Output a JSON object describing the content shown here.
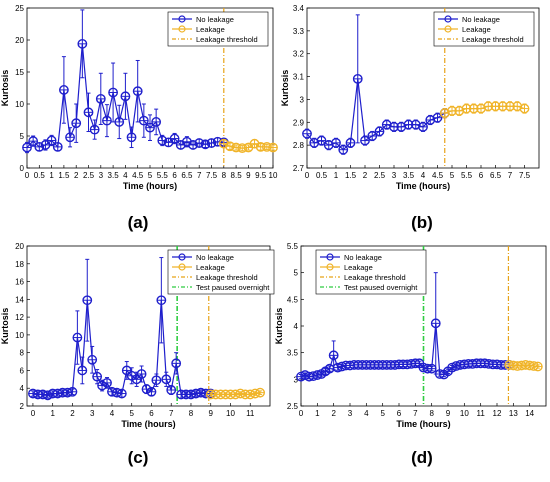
{
  "colors": {
    "no_leakage": "#1f1fcc",
    "leakage": "#f0b429",
    "threshold": "#e8a317",
    "overnight": "#2ecc40",
    "axis": "#000000"
  },
  "chart_data": [
    {
      "panel_label": "(a)",
      "type": "line",
      "xlabel": "Time (hours)",
      "ylabel": "Kurtosis",
      "xlim": [
        0,
        10
      ],
      "ylim": [
        0,
        25
      ],
      "xticks": [
        0,
        0.5,
        1,
        1.5,
        2,
        2.5,
        3,
        3.5,
        4,
        4.5,
        5,
        5.5,
        6,
        6.5,
        7,
        7.5,
        8,
        8.5,
        9,
        9.5,
        10
      ],
      "xtick_labels": [
        "0",
        "0.5",
        "1",
        "1.5",
        "2",
        "2.5",
        "3",
        "3.5",
        "4",
        "4.5",
        "5",
        "5.5",
        "6",
        "6.5",
        "7",
        "7.5",
        "8",
        "8.5",
        "9",
        "9.5",
        "10"
      ],
      "yticks": [
        0,
        5,
        10,
        15,
        20,
        25
      ],
      "ytick_labels": [
        "0",
        "5",
        "10",
        "15",
        "20",
        "25"
      ],
      "legend": [
        "No leakage",
        "Leakage",
        "Leakage threshold"
      ],
      "legend_position": "top-right",
      "grid": false,
      "threshold": 8,
      "series": [
        {
          "name": "No leakage",
          "x": [
            0,
            0.25,
            0.5,
            0.75,
            1,
            1.25,
            1.5,
            1.75,
            2,
            2.25,
            2.5,
            2.75,
            3,
            3.25,
            3.5,
            3.75,
            4,
            4.25,
            4.5,
            4.75,
            5,
            5.25,
            5.5,
            5.75,
            6,
            6.25,
            6.5,
            6.75,
            7,
            7.25,
            7.5,
            7.75,
            8
          ],
          "y": [
            3.2,
            4.2,
            3.3,
            3.6,
            4.3,
            3.3,
            12.2,
            4.8,
            7.0,
            19.4,
            8.7,
            6.0,
            10.8,
            7.4,
            11.8,
            7.2,
            11.2,
            4.8,
            12.0,
            7.4,
            6.3,
            7.2,
            4.3,
            4.0,
            4.6,
            3.6,
            4.1,
            3.6,
            3.9,
            3.7,
            3.9,
            4.1,
            4.0
          ],
          "err": [
            0.8,
            0.8,
            0.6,
            0.8,
            0.8,
            0.6,
            5.2,
            1.5,
            3.0,
            5.3,
            3.0,
            1.5,
            4.0,
            2.5,
            4.6,
            2.6,
            3.6,
            1.6,
            4.8,
            2.6,
            2.0,
            2.0,
            0.8,
            0.6,
            0.8,
            0.6,
            0.8,
            0.6,
            0.6,
            0.5,
            0.6,
            0.6,
            0.5
          ]
        },
        {
          "name": "Leakage",
          "x": [
            8,
            8.25,
            8.5,
            8.75,
            9,
            9.25,
            9.5,
            9.75,
            10
          ],
          "y": [
            3.8,
            3.4,
            3.2,
            3.1,
            3.2,
            3.8,
            3.3,
            3.3,
            3.2
          ],
          "err": [
            0.6,
            0.5,
            0.4,
            0.4,
            0.4,
            0.6,
            0.5,
            0.4,
            0.4
          ]
        }
      ]
    },
    {
      "panel_label": "(b)",
      "type": "line",
      "xlabel": "Time (hours)",
      "ylabel": "Kurtosis",
      "xlim": [
        0,
        8
      ],
      "ylim": [
        2.7,
        3.4
      ],
      "xticks": [
        0,
        0.5,
        1,
        1.5,
        2,
        2.5,
        3,
        3.5,
        4,
        4.5,
        5,
        5.5,
        6,
        6.5,
        7,
        7.5
      ],
      "xtick_labels": [
        "0",
        "0.5",
        "1",
        "1.5",
        "2",
        "2.5",
        "3",
        "3.5",
        "4",
        "4.5",
        "5",
        "5.5",
        "6",
        "6.5",
        "7",
        "7.5"
      ],
      "yticks": [
        2.7,
        2.8,
        2.9,
        3,
        3.1,
        3.2,
        3.3,
        3.4
      ],
      "ytick_labels": [
        "2.7",
        "2.8",
        "2.9",
        "3",
        "3.1",
        "3.2",
        "3.3",
        "3.4"
      ],
      "legend": [
        "No leakage",
        "Leakage",
        "Leakage threshold"
      ],
      "legend_position": "top-right",
      "grid": false,
      "threshold": 4.75,
      "series": [
        {
          "name": "No leakage",
          "x": [
            0,
            0.25,
            0.5,
            0.75,
            1,
            1.25,
            1.5,
            1.75,
            2,
            2.25,
            2.5,
            2.75,
            3,
            3.25,
            3.5,
            3.75,
            4,
            4.25,
            4.5,
            4.75
          ],
          "y": [
            2.85,
            2.81,
            2.82,
            2.8,
            2.81,
            2.78,
            2.81,
            3.09,
            2.82,
            2.84,
            2.86,
            2.89,
            2.88,
            2.88,
            2.89,
            2.89,
            2.88,
            2.91,
            2.92,
            2.94
          ],
          "err": [
            0.02,
            0.02,
            0.02,
            0.02,
            0.02,
            0.02,
            0.02,
            0.28,
            0.02,
            0.02,
            0.02,
            0.02,
            0.02,
            0.02,
            0.02,
            0.02,
            0.02,
            0.02,
            0.02,
            0.02
          ]
        },
        {
          "name": "Leakage",
          "x": [
            4.75,
            5,
            5.25,
            5.5,
            5.75,
            6,
            6.25,
            6.5,
            6.75,
            7,
            7.25,
            7.5
          ],
          "y": [
            2.94,
            2.95,
            2.95,
            2.96,
            2.96,
            2.96,
            2.97,
            2.97,
            2.97,
            2.97,
            2.97,
            2.96
          ],
          "err": [
            0.02,
            0.02,
            0.02,
            0.02,
            0.02,
            0.02,
            0.02,
            0.02,
            0.02,
            0.02,
            0.02,
            0.02
          ]
        }
      ]
    },
    {
      "panel_label": "(c)",
      "type": "line",
      "xlabel": "Time (hours)",
      "ylabel": "Kurtosis",
      "xlim": [
        -0.3,
        12
      ],
      "ylim": [
        2,
        20
      ],
      "xticks": [
        0,
        1,
        2,
        3,
        4,
        5,
        6,
        7,
        8,
        9,
        10,
        11
      ],
      "xtick_labels": [
        "0",
        "1",
        "2",
        "3",
        "4",
        "5",
        "6",
        "7",
        "8",
        "9",
        "10",
        "11"
      ],
      "yticks": [
        2,
        4,
        6,
        8,
        10,
        12,
        14,
        16,
        18,
        20
      ],
      "ytick_labels": [
        "2",
        "4",
        "6",
        "8",
        "10",
        "12",
        "14",
        "16",
        "18",
        "20"
      ],
      "legend": [
        "No leakage",
        "Leakage",
        "Leakage threshold",
        "Test paused overnight"
      ],
      "legend_position": "top-right",
      "grid": false,
      "threshold": 8.9,
      "overnight": 7.3,
      "series": [
        {
          "name": "No leakage",
          "x": [
            0,
            0.25,
            0.5,
            0.75,
            1,
            1.25,
            1.5,
            1.75,
            2,
            2.25,
            2.5,
            2.75,
            3,
            3.25,
            3.5,
            3.75,
            4,
            4.25,
            4.5,
            4.75,
            5,
            5.25,
            5.5,
            5.75,
            6,
            6.25,
            6.5,
            6.75,
            7,
            7.25,
            7.5,
            7.75,
            8,
            8.25,
            8.5,
            8.75,
            9
          ],
          "y": [
            3.4,
            3.3,
            3.3,
            3.2,
            3.4,
            3.4,
            3.5,
            3.5,
            3.6,
            9.7,
            6.0,
            13.9,
            7.2,
            5.3,
            4.3,
            4.6,
            3.6,
            3.5,
            3.4,
            6.0,
            5.4,
            5.0,
            5.6,
            3.9,
            3.6,
            4.9,
            13.9,
            5.0,
            3.8,
            6.8,
            3.3,
            3.3,
            3.3,
            3.4,
            3.5,
            3.4,
            3.4
          ],
          "err": [
            0.3,
            0.3,
            0.3,
            0.3,
            0.3,
            0.3,
            0.3,
            0.3,
            0.3,
            3.0,
            1.5,
            4.6,
            1.5,
            0.8,
            0.6,
            0.6,
            0.4,
            0.4,
            0.4,
            1.0,
            0.9,
            0.8,
            0.9,
            0.5,
            0.4,
            0.7,
            4.8,
            0.8,
            0.5,
            1.2,
            0.4,
            0.3,
            0.3,
            0.3,
            0.3,
            0.3,
            0.3
          ]
        },
        {
          "name": "Leakage",
          "x": [
            9,
            9.25,
            9.5,
            9.75,
            10,
            10.25,
            10.5,
            10.75,
            11,
            11.25,
            11.5
          ],
          "y": [
            3.3,
            3.3,
            3.3,
            3.3,
            3.3,
            3.3,
            3.4,
            3.3,
            3.3,
            3.4,
            3.5
          ],
          "err": [
            0.2,
            0.2,
            0.2,
            0.2,
            0.2,
            0.2,
            0.2,
            0.2,
            0.2,
            0.2,
            0.2
          ]
        }
      ]
    },
    {
      "panel_label": "(d)",
      "type": "line",
      "xlabel": "Time (hours)",
      "ylabel": "Kurtosis",
      "xlim": [
        0,
        15
      ],
      "ylim": [
        2.5,
        5.5
      ],
      "xticks": [
        0,
        1,
        2,
        3,
        4,
        5,
        6,
        7,
        8,
        9,
        10,
        11,
        12,
        13,
        14
      ],
      "xtick_labels": [
        "0",
        "1",
        "2",
        "3",
        "4",
        "5",
        "6",
        "7",
        "8",
        "9",
        "10",
        "11",
        "12",
        "13",
        "14"
      ],
      "yticks": [
        2.5,
        3,
        3.5,
        4,
        4.5,
        5,
        5.5
      ],
      "ytick_labels": [
        "2.5",
        "3",
        "3.5",
        "4",
        "4.5",
        "5",
        "5.5"
      ],
      "legend": [
        "No leakage",
        "Leakage",
        "Leakage threshold",
        "Test paused overnight"
      ],
      "legend_position": "top-left",
      "grid": false,
      "threshold": 12.7,
      "overnight": 7.5,
      "series": [
        {
          "name": "No leakage",
          "x": [
            0,
            0.25,
            0.5,
            0.75,
            1,
            1.25,
            1.5,
            1.75,
            2,
            2.25,
            2.5,
            2.75,
            3,
            3.25,
            3.5,
            3.75,
            4,
            4.25,
            4.5,
            4.75,
            5,
            5.25,
            5.5,
            5.75,
            6,
            6.25,
            6.5,
            6.75,
            7,
            7.25,
            7.5,
            7.75,
            8,
            8.25,
            8.5,
            8.75,
            9,
            9.25,
            9.5,
            9.75,
            10,
            10.25,
            10.5,
            10.75,
            11,
            11.25,
            11.5,
            11.75,
            12,
            12.25,
            12.5,
            12.75
          ],
          "y": [
            3.05,
            3.08,
            3.05,
            3.06,
            3.08,
            3.1,
            3.15,
            3.2,
            3.45,
            3.22,
            3.24,
            3.26,
            3.26,
            3.27,
            3.27,
            3.27,
            3.27,
            3.27,
            3.27,
            3.27,
            3.27,
            3.27,
            3.27,
            3.27,
            3.28,
            3.28,
            3.28,
            3.29,
            3.3,
            3.3,
            3.22,
            3.2,
            3.2,
            4.05,
            3.1,
            3.09,
            3.15,
            3.22,
            3.25,
            3.27,
            3.28,
            3.29,
            3.29,
            3.3,
            3.3,
            3.3,
            3.29,
            3.28,
            3.28,
            3.27,
            3.27,
            3.27
          ],
          "err": [
            0.04,
            0.04,
            0.04,
            0.04,
            0.04,
            0.04,
            0.05,
            0.05,
            0.27,
            0.05,
            0.04,
            0.04,
            0.04,
            0.04,
            0.04,
            0.04,
            0.04,
            0.04,
            0.04,
            0.04,
            0.04,
            0.04,
            0.04,
            0.04,
            0.04,
            0.04,
            0.04,
            0.04,
            0.04,
            0.04,
            0.04,
            0.04,
            0.04,
            0.95,
            0.04,
            0.04,
            0.04,
            0.04,
            0.04,
            0.04,
            0.04,
            0.04,
            0.04,
            0.04,
            0.04,
            0.04,
            0.04,
            0.04,
            0.04,
            0.04,
            0.04,
            0.04
          ]
        },
        {
          "name": "Leakage",
          "x": [
            12.75,
            13,
            13.25,
            13.5,
            13.75,
            14,
            14.25,
            14.5
          ],
          "y": [
            3.27,
            3.26,
            3.25,
            3.26,
            3.27,
            3.26,
            3.25,
            3.24
          ],
          "err": [
            0.03,
            0.03,
            0.03,
            0.03,
            0.03,
            0.03,
            0.03,
            0.03
          ]
        }
      ]
    }
  ]
}
